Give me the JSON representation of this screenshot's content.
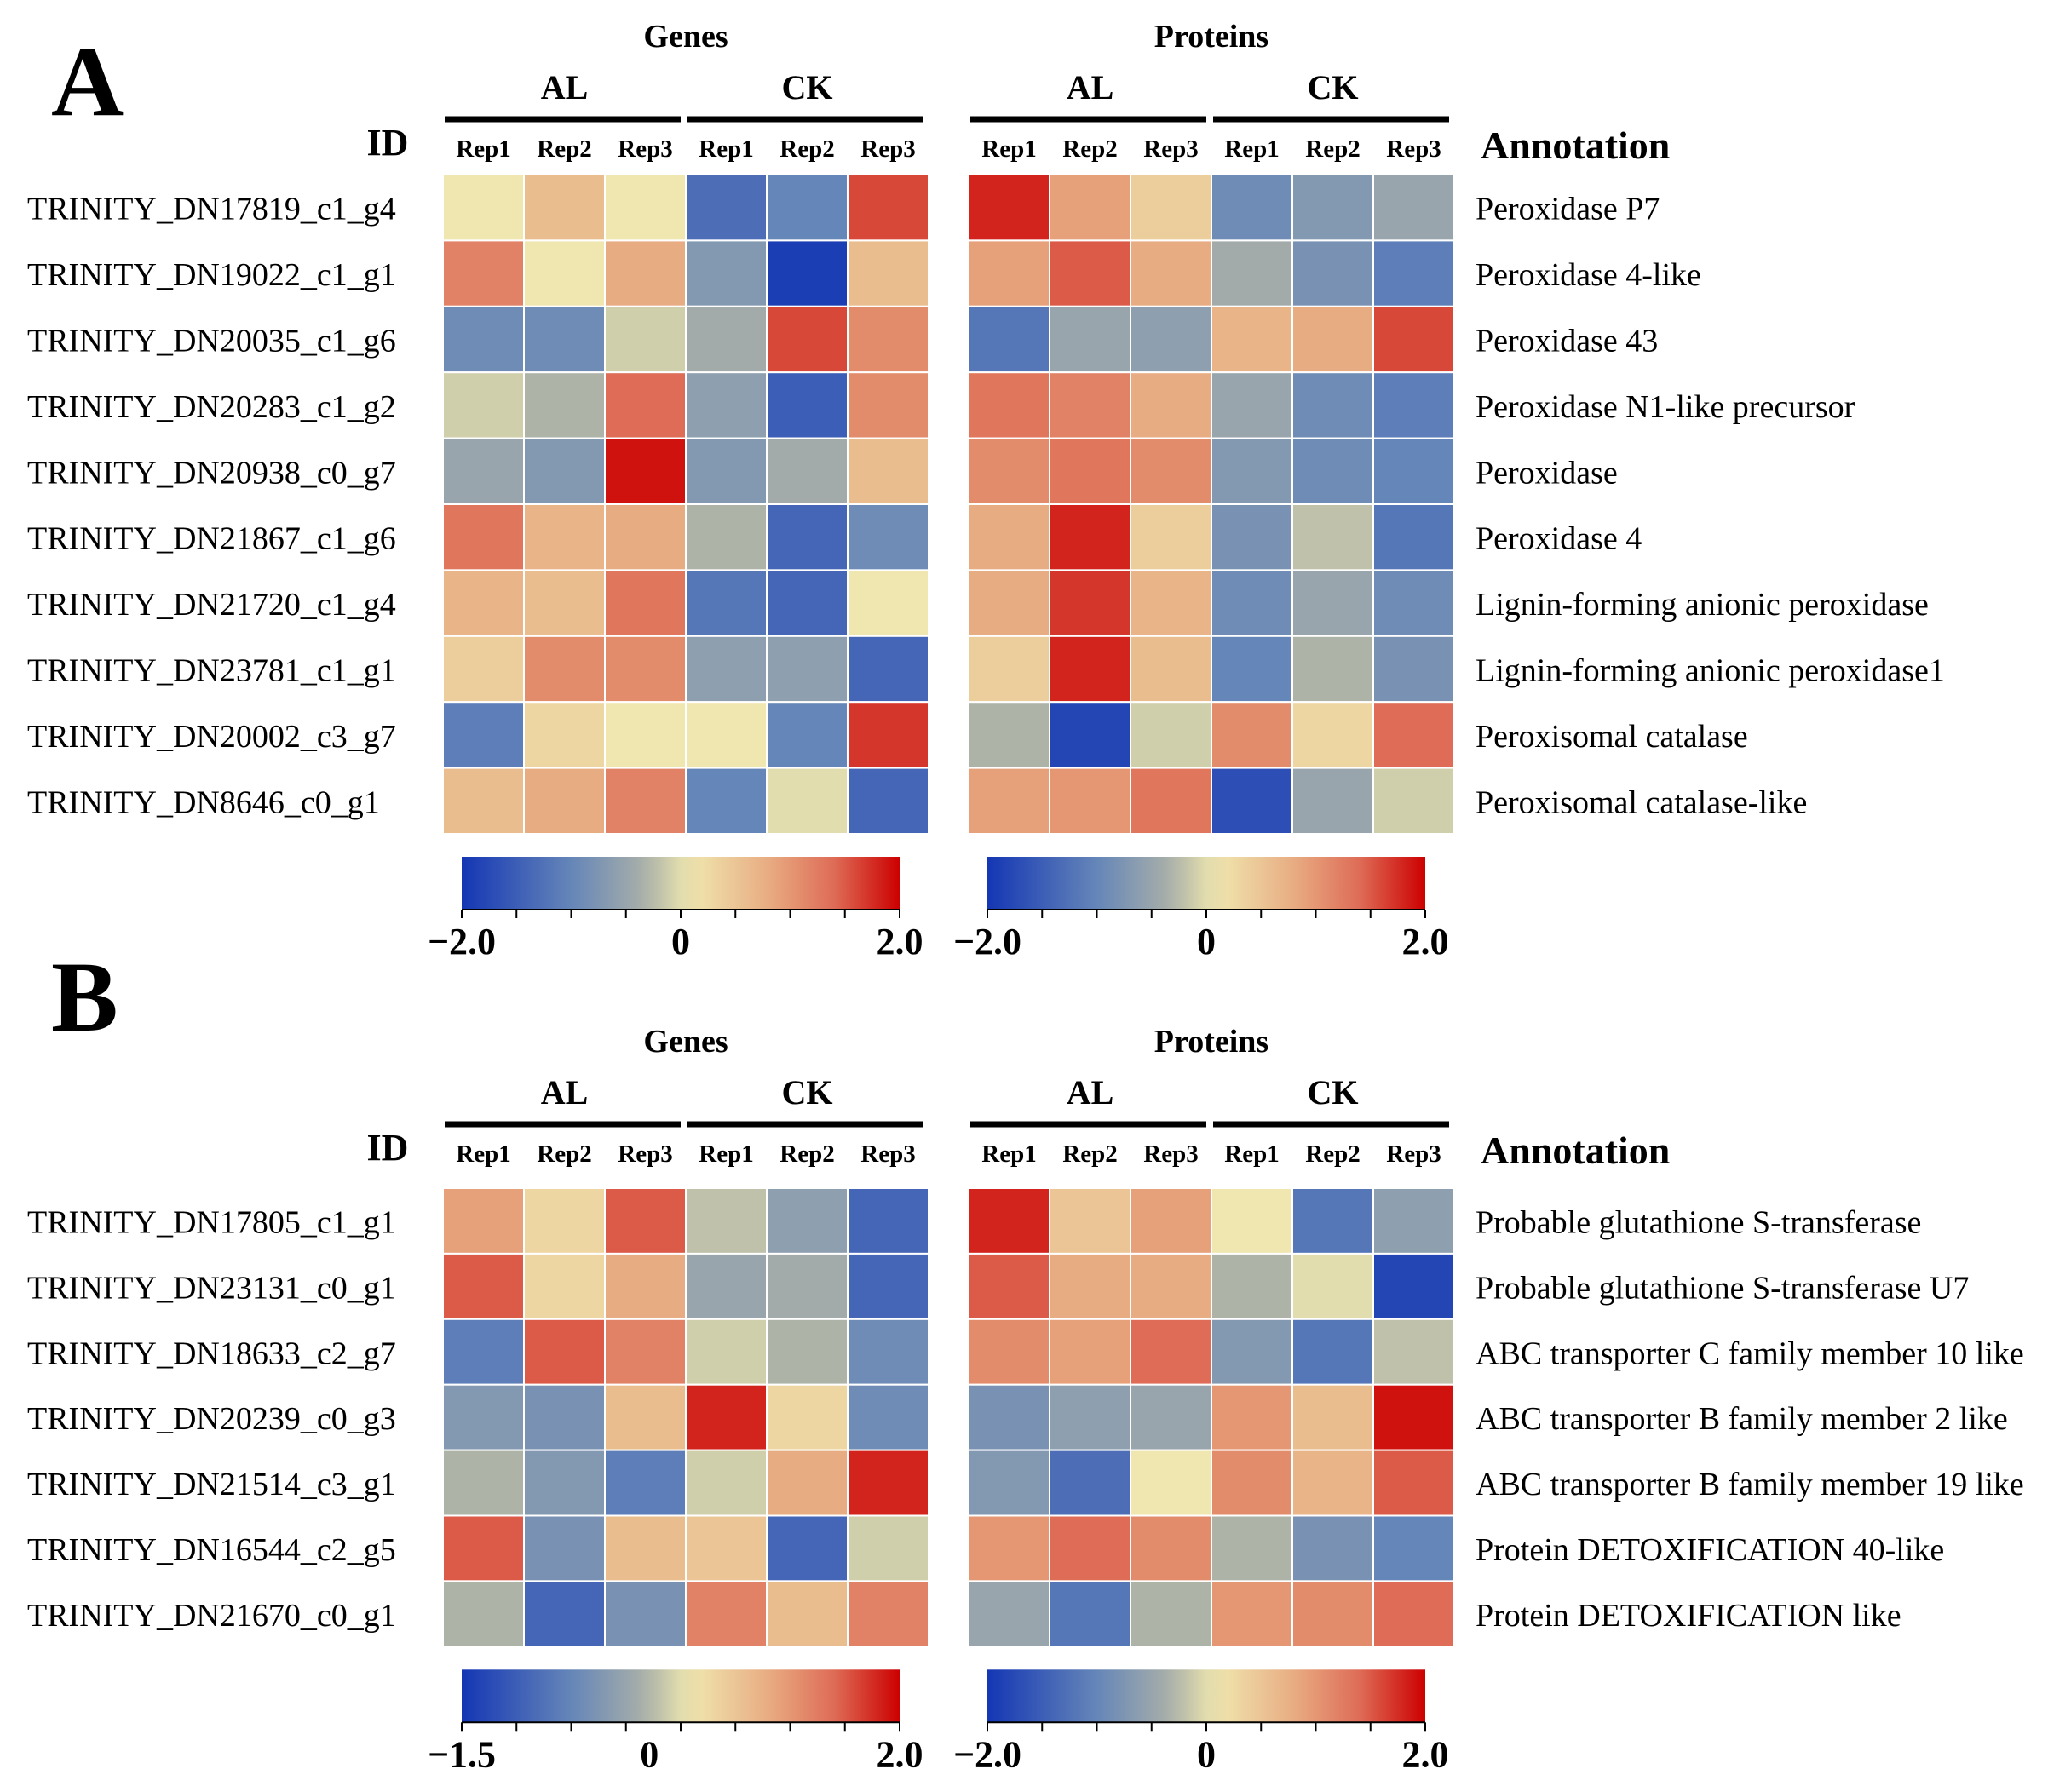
{
  "chart_data": [
    {
      "type": "heatmap",
      "panel": "A",
      "id_header": "ID",
      "annotation_header": "Annotation",
      "groups": [
        "AL",
        "CK"
      ],
      "replicates": [
        "Rep1",
        "Rep2",
        "Rep3"
      ],
      "row_ids": [
        "TRINITY_DN17819_c1_g4",
        "TRINITY_DN19022_c1_g1",
        "TRINITY_DN20035_c1_g6",
        "TRINITY_DN20283_c1_g2",
        "TRINITY_DN20938_c0_g7",
        "TRINITY_DN21867_c1_g6",
        "TRINITY_DN21720_c1_g4",
        "TRINITY_DN23781_c1_g1",
        "TRINITY_DN20002_c3_g7",
        "TRINITY_DN8646_c0_g1"
      ],
      "annotations": [
        "Peroxidase P7",
        "Peroxidase 4-like",
        "Peroxidase 43",
        "Peroxidase N1-like precursor",
        "Peroxidase",
        "Peroxidase 4",
        "Lignin-forming anionic peroxidase",
        "Lignin-forming anionic peroxidase1",
        "Peroxisomal catalase",
        "Peroxisomal catalase-like"
      ],
      "blocks": [
        {
          "title": "Genes",
          "scale": {
            "min": -2.0,
            "max": 2.0,
            "labels": [
              "−2.0",
              "0",
              "2.0"
            ]
          },
          "values": [
            [
              0.1,
              0.6,
              0.1,
              -1.3,
              -1.0,
              1.6
            ],
            [
              1.2,
              0.1,
              0.8,
              -0.7,
              -1.9,
              0.6
            ],
            [
              -0.9,
              -0.9,
              -0.1,
              -0.4,
              1.6,
              1.1
            ],
            [
              -0.1,
              -0.3,
              1.4,
              -0.6,
              -1.5,
              1.1
            ],
            [
              -0.5,
              -0.7,
              1.9,
              -0.7,
              -0.4,
              0.6
            ],
            [
              1.3,
              0.7,
              0.8,
              -0.3,
              -1.4,
              -0.9
            ],
            [
              0.7,
              0.6,
              1.3,
              -1.2,
              -1.4,
              0.1
            ],
            [
              0.4,
              1.1,
              1.1,
              -0.6,
              -0.6,
              -1.4
            ],
            [
              -1.1,
              0.3,
              0.1,
              0.1,
              -1.0,
              1.7
            ],
            [
              0.6,
              0.8,
              1.2,
              -1.0,
              0.0,
              -1.4
            ]
          ]
        },
        {
          "title": "Proteins",
          "scale": {
            "min": -2.0,
            "max": 2.0,
            "labels": [
              "−2.0",
              "0",
              "2.0"
            ]
          },
          "values": [
            [
              1.8,
              0.9,
              0.4,
              -0.9,
              -0.7,
              -0.5
            ],
            [
              0.9,
              1.5,
              0.8,
              -0.4,
              -0.8,
              -1.1
            ],
            [
              -1.2,
              -0.5,
              -0.6,
              0.7,
              0.8,
              1.6
            ],
            [
              1.3,
              1.2,
              0.8,
              -0.5,
              -0.9,
              -1.1
            ],
            [
              1.1,
              1.3,
              1.1,
              -0.7,
              -0.9,
              -1.0
            ],
            [
              0.8,
              1.8,
              0.4,
              -0.8,
              -0.2,
              -1.2
            ],
            [
              0.8,
              1.7,
              0.7,
              -0.9,
              -0.5,
              -0.9
            ],
            [
              0.4,
              1.8,
              0.6,
              -1.0,
              -0.3,
              -0.8
            ],
            [
              -0.3,
              -1.8,
              -0.1,
              1.1,
              0.3,
              1.4
            ],
            [
              0.9,
              1.0,
              1.3,
              -1.7,
              -0.5,
              -0.1
            ]
          ]
        }
      ]
    },
    {
      "type": "heatmap",
      "panel": "B",
      "id_header": "ID",
      "annotation_header": "Annotation",
      "groups": [
        "AL",
        "CK"
      ],
      "replicates": [
        "Rep1",
        "Rep2",
        "Rep3"
      ],
      "row_ids": [
        "TRINITY_DN17805_c1_g1",
        "TRINITY_DN23131_c0_g1",
        "TRINITY_DN18633_c2_g7",
        "TRINITY_DN20239_c0_g3",
        "TRINITY_DN21514_c3_g1",
        "TRINITY_DN16544_c2_g5",
        "TRINITY_DN21670_c0_g1"
      ],
      "annotations": [
        "Probable glutathione S-transferase",
        "Probable glutathione S-transferase U7",
        "ABC transporter C family member 10 like",
        "ABC transporter B family member 2 like",
        "ABC transporter B family member 19 like",
        "Protein DETOXIFICATION 40-like",
        "Protein DETOXIFICATION like"
      ],
      "blocks": [
        {
          "title": "Genes",
          "scale": {
            "min": -1.5,
            "max": 2.0,
            "labels": [
              "−1.5",
              "0",
              "2.0"
            ]
          },
          "values": [
            [
              0.9,
              0.3,
              1.5,
              -0.2,
              -0.6,
              -1.4
            ],
            [
              1.5,
              0.3,
              0.8,
              -0.5,
              -0.4,
              -1.4
            ],
            [
              -1.1,
              1.5,
              1.2,
              -0.1,
              -0.3,
              -0.9
            ],
            [
              -0.7,
              -0.8,
              0.6,
              1.8,
              0.3,
              -0.9
            ],
            [
              -0.3,
              -0.7,
              -1.1,
              -0.1,
              0.8,
              1.8
            ],
            [
              1.5,
              -0.8,
              0.6,
              0.5,
              -1.4,
              -0.1
            ],
            [
              -0.3,
              -1.4,
              -0.8,
              1.2,
              0.6,
              1.2
            ]
          ]
        },
        {
          "title": "Proteins",
          "scale": {
            "min": -2.0,
            "max": 2.0,
            "labels": [
              "−2.0",
              "0",
              "2.0"
            ]
          },
          "values": [
            [
              1.8,
              0.5,
              0.9,
              0.1,
              -1.2,
              -0.6
            ],
            [
              1.5,
              0.8,
              0.8,
              -0.3,
              0.0,
              -1.8
            ],
            [
              1.1,
              0.9,
              1.4,
              -0.7,
              -1.2,
              -0.2
            ],
            [
              -0.8,
              -0.6,
              -0.5,
              1.0,
              0.6,
              1.9
            ],
            [
              -0.7,
              -1.3,
              0.1,
              1.1,
              0.7,
              1.5
            ],
            [
              1.0,
              1.4,
              1.1,
              -0.3,
              -0.8,
              -1.0
            ],
            [
              -0.5,
              -1.2,
              -0.3,
              1.0,
              1.1,
              1.4
            ]
          ]
        }
      ]
    }
  ]
}
